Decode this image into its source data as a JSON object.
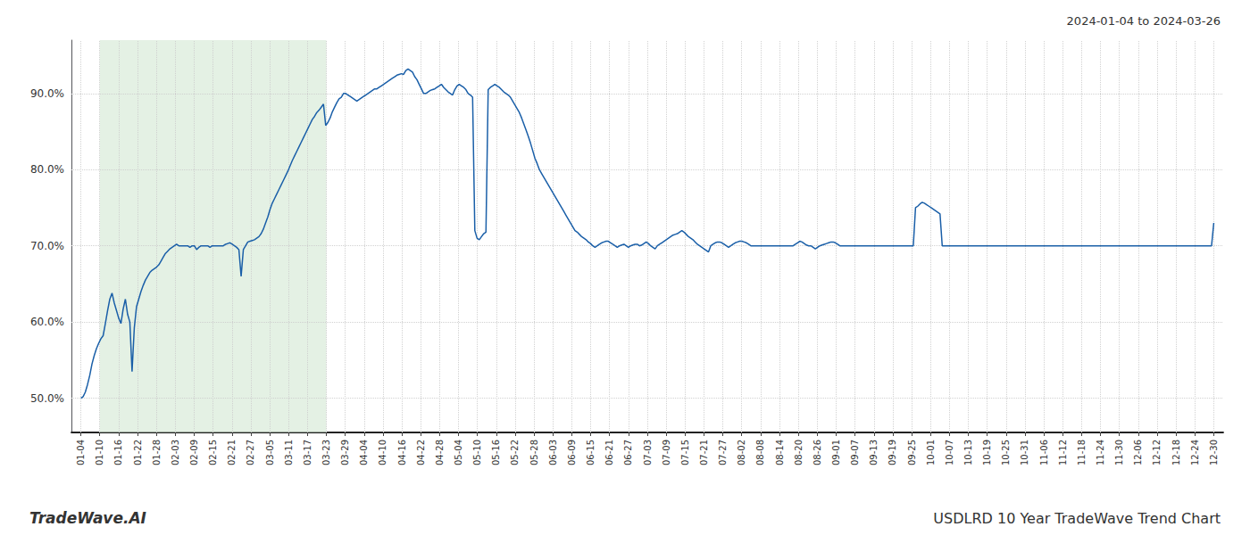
{
  "chart_data": {
    "type": "line",
    "title": "USDLRD 10 Year TradeWave Trend Chart",
    "subtitle": "2024-01-04 to 2024-03-26",
    "annotations": [
      "TradeWave.AI"
    ],
    "color": "#1a5fa8",
    "grid": true,
    "xlim": [
      -0.5,
      60.5
    ],
    "xticks": [
      {
        "value": 0,
        "label": "01-04"
      },
      {
        "value": 1,
        "label": "01-10"
      },
      {
        "value": 2,
        "label": "01-16"
      },
      {
        "value": 3,
        "label": "01-22"
      },
      {
        "value": 4,
        "label": "01-28"
      },
      {
        "value": 5,
        "label": "02-03"
      },
      {
        "value": 6,
        "label": "02-09"
      },
      {
        "value": 7,
        "label": "02-15"
      },
      {
        "value": 8,
        "label": "02-21"
      },
      {
        "value": 9,
        "label": "02-27"
      },
      {
        "value": 10,
        "label": "03-05"
      },
      {
        "value": 11,
        "label": "03-11"
      },
      {
        "value": 12,
        "label": "03-17"
      },
      {
        "value": 13,
        "label": "03-23"
      },
      {
        "value": 14,
        "label": "03-29"
      },
      {
        "value": 15,
        "label": "04-04"
      },
      {
        "value": 16,
        "label": "04-10"
      },
      {
        "value": 17,
        "label": "04-16"
      },
      {
        "value": 18,
        "label": "04-22"
      },
      {
        "value": 19,
        "label": "04-28"
      },
      {
        "value": 20,
        "label": "05-04"
      },
      {
        "value": 21,
        "label": "05-10"
      },
      {
        "value": 22,
        "label": "05-16"
      },
      {
        "value": 23,
        "label": "05-22"
      },
      {
        "value": 24,
        "label": "05-28"
      },
      {
        "value": 25,
        "label": "06-03"
      },
      {
        "value": 26,
        "label": "06-09"
      },
      {
        "value": 27,
        "label": "06-15"
      },
      {
        "value": 28,
        "label": "06-21"
      },
      {
        "value": 29,
        "label": "06-27"
      },
      {
        "value": 30,
        "label": "07-03"
      },
      {
        "value": 31,
        "label": "07-09"
      },
      {
        "value": 32,
        "label": "07-15"
      },
      {
        "value": 33,
        "label": "07-21"
      },
      {
        "value": 34,
        "label": "07-27"
      },
      {
        "value": 35,
        "label": "08-02"
      },
      {
        "value": 36,
        "label": "08-08"
      },
      {
        "value": 37,
        "label": "08-14"
      },
      {
        "value": 38,
        "label": "08-20"
      },
      {
        "value": 39,
        "label": "08-26"
      },
      {
        "value": 40,
        "label": "09-01"
      },
      {
        "value": 41,
        "label": "09-07"
      },
      {
        "value": 42,
        "label": "09-13"
      },
      {
        "value": 43,
        "label": "09-19"
      },
      {
        "value": 44,
        "label": "09-25"
      },
      {
        "value": 45,
        "label": "10-01"
      },
      {
        "value": 46,
        "label": "10-07"
      },
      {
        "value": 47,
        "label": "10-13"
      },
      {
        "value": 48,
        "label": "10-19"
      },
      {
        "value": 49,
        "label": "10-25"
      },
      {
        "value": 50,
        "label": "10-31"
      },
      {
        "value": 51,
        "label": "11-06"
      },
      {
        "value": 52,
        "label": "11-12"
      },
      {
        "value": 53,
        "label": "11-18"
      },
      {
        "value": 54,
        "label": "11-24"
      },
      {
        "value": 55,
        "label": "11-30"
      },
      {
        "value": 56,
        "label": "12-06"
      },
      {
        "value": 57,
        "label": "12-12"
      },
      {
        "value": 58,
        "label": "12-18"
      },
      {
        "value": 59,
        "label": "12-24"
      },
      {
        "value": 60,
        "label": "12-30"
      }
    ],
    "ylim": [
      0.455,
      0.97
    ],
    "yticks": [
      {
        "value": 0.5,
        "label": "50.0%"
      },
      {
        "value": 0.6,
        "label": "60.0%"
      },
      {
        "value": 0.7,
        "label": "70.0%"
      },
      {
        "value": 0.8,
        "label": "80.0%"
      },
      {
        "value": 0.9,
        "label": "90.0%"
      }
    ],
    "shaded_span": {
      "from": "01-10",
      "to": "03-23",
      "color": "#d6ead6"
    },
    "values": [
      0.5,
      0.502,
      0.508,
      0.518,
      0.53,
      0.545,
      0.556,
      0.565,
      0.572,
      0.578,
      0.582,
      0.598,
      0.615,
      0.63,
      0.638,
      0.625,
      0.615,
      0.605,
      0.598,
      0.617,
      0.63,
      0.61,
      0.6,
      0.535,
      0.592,
      0.62,
      0.63,
      0.64,
      0.648,
      0.655,
      0.66,
      0.665,
      0.668,
      0.67,
      0.672,
      0.675,
      0.68,
      0.685,
      0.69,
      0.693,
      0.696,
      0.698,
      0.7,
      0.702,
      0.7,
      0.7,
      0.7,
      0.7,
      0.7,
      0.698,
      0.7,
      0.7,
      0.695,
      0.698,
      0.7,
      0.7,
      0.7,
      0.7,
      0.698,
      0.7,
      0.7,
      0.7,
      0.7,
      0.7,
      0.7,
      0.702,
      0.703,
      0.704,
      0.702,
      0.7,
      0.698,
      0.695,
      0.66,
      0.695,
      0.7,
      0.705,
      0.706,
      0.707,
      0.708,
      0.71,
      0.712,
      0.716,
      0.722,
      0.73,
      0.738,
      0.748,
      0.756,
      0.762,
      0.768,
      0.774,
      0.78,
      0.786,
      0.792,
      0.798,
      0.805,
      0.812,
      0.818,
      0.824,
      0.83,
      0.836,
      0.842,
      0.848,
      0.854,
      0.86,
      0.866,
      0.87,
      0.875,
      0.878,
      0.882,
      0.886,
      0.858,
      0.862,
      0.868,
      0.876,
      0.882,
      0.888,
      0.893,
      0.895,
      0.9,
      0.9,
      0.898,
      0.896,
      0.894,
      0.892,
      0.89,
      0.892,
      0.894,
      0.896,
      0.898,
      0.9,
      0.902,
      0.904,
      0.906,
      0.906,
      0.908,
      0.91,
      0.912,
      0.914,
      0.916,
      0.918,
      0.92,
      0.922,
      0.924,
      0.925,
      0.926,
      0.925,
      0.93,
      0.932,
      0.93,
      0.928,
      0.922,
      0.918,
      0.912,
      0.906,
      0.9,
      0.9,
      0.902,
      0.904,
      0.905,
      0.906,
      0.908,
      0.91,
      0.912,
      0.908,
      0.905,
      0.902,
      0.9,
      0.898,
      0.905,
      0.91,
      0.912,
      0.91,
      0.908,
      0.905,
      0.9,
      0.898,
      0.895,
      0.72,
      0.71,
      0.708,
      0.712,
      0.716,
      0.718,
      0.905,
      0.908,
      0.91,
      0.912,
      0.91,
      0.908,
      0.905,
      0.902,
      0.9,
      0.898,
      0.895,
      0.89,
      0.885,
      0.88,
      0.875,
      0.868,
      0.86,
      0.852,
      0.844,
      0.835,
      0.825,
      0.815,
      0.808,
      0.8,
      0.795,
      0.79,
      0.785,
      0.78,
      0.775,
      0.77,
      0.765,
      0.76,
      0.755,
      0.75,
      0.745,
      0.74,
      0.735,
      0.73,
      0.725,
      0.72,
      0.718,
      0.715,
      0.712,
      0.71,
      0.708,
      0.705,
      0.703,
      0.7,
      0.698,
      0.7,
      0.702,
      0.704,
      0.705,
      0.706,
      0.706,
      0.704,
      0.702,
      0.7,
      0.698,
      0.7,
      0.701,
      0.702,
      0.7,
      0.698,
      0.7,
      0.701,
      0.702,
      0.702,
      0.7,
      0.701,
      0.703,
      0.705,
      0.703,
      0.7,
      0.698,
      0.696,
      0.7,
      0.702,
      0.704,
      0.706,
      0.708,
      0.71,
      0.712,
      0.714,
      0.715,
      0.716,
      0.718,
      0.72,
      0.718,
      0.715,
      0.712,
      0.71,
      0.708,
      0.705,
      0.702,
      0.7,
      0.698,
      0.696,
      0.694,
      0.692,
      0.7,
      0.702,
      0.704,
      0.705,
      0.705,
      0.704,
      0.702,
      0.7,
      0.698,
      0.7,
      0.702,
      0.704,
      0.705,
      0.706,
      0.706,
      0.705,
      0.704,
      0.702,
      0.7,
      0.7,
      0.7,
      0.7,
      0.7,
      0.7,
      0.7,
      0.7,
      0.7,
      0.7,
      0.7,
      0.7,
      0.7,
      0.7,
      0.7,
      0.7,
      0.7,
      0.7,
      0.7,
      0.7,
      0.702,
      0.704,
      0.706,
      0.705,
      0.703,
      0.701,
      0.7,
      0.7,
      0.698,
      0.696,
      0.698,
      0.7,
      0.701,
      0.702,
      0.703,
      0.704,
      0.705,
      0.705,
      0.704,
      0.702,
      0.7,
      0.7,
      0.7,
      0.7,
      0.7,
      0.7,
      0.7,
      0.7,
      0.7,
      0.7,
      0.7,
      0.7,
      0.7,
      0.7,
      0.7,
      0.7,
      0.7,
      0.7,
      0.7,
      0.7,
      0.7,
      0.7,
      0.7,
      0.7,
      0.7,
      0.7,
      0.7,
      0.7,
      0.7,
      0.7,
      0.7,
      0.7,
      0.7,
      0.7,
      0.75,
      0.752,
      0.755,
      0.757,
      0.756,
      0.754,
      0.752,
      0.75,
      0.748,
      0.746,
      0.744,
      0.742,
      0.7,
      0.7,
      0.7,
      0.7,
      0.7,
      0.7,
      0.7,
      0.7,
      0.7,
      0.7,
      0.7,
      0.7,
      0.7,
      0.7,
      0.7,
      0.7,
      0.7,
      0.7,
      0.7,
      0.7,
      0.7,
      0.7,
      0.7,
      0.7,
      0.7,
      0.7,
      0.7,
      0.7,
      0.7,
      0.7,
      0.7,
      0.7,
      0.7,
      0.7,
      0.7,
      0.7,
      0.7,
      0.7,
      0.7,
      0.7,
      0.7,
      0.7,
      0.7,
      0.7,
      0.7,
      0.7,
      0.7,
      0.7,
      0.7,
      0.7,
      0.7,
      0.7,
      0.7,
      0.7,
      0.7,
      0.7,
      0.7,
      0.7,
      0.7,
      0.7,
      0.7,
      0.7,
      0.7,
      0.7,
      0.7,
      0.7,
      0.7,
      0.7,
      0.7,
      0.7,
      0.7,
      0.7,
      0.7,
      0.7,
      0.7,
      0.7,
      0.7,
      0.7,
      0.7,
      0.7,
      0.7,
      0.7,
      0.7,
      0.7,
      0.7,
      0.7,
      0.7,
      0.7,
      0.7,
      0.7,
      0.7,
      0.7,
      0.7,
      0.7,
      0.7,
      0.7,
      0.7,
      0.7,
      0.7,
      0.7,
      0.7,
      0.7,
      0.7,
      0.7,
      0.7,
      0.7,
      0.7,
      0.7,
      0.7,
      0.7,
      0.7,
      0.7,
      0.7,
      0.7,
      0.7,
      0.7,
      0.7,
      0.7,
      0.7,
      0.7,
      0.7,
      0.7,
      0.73
    ]
  }
}
